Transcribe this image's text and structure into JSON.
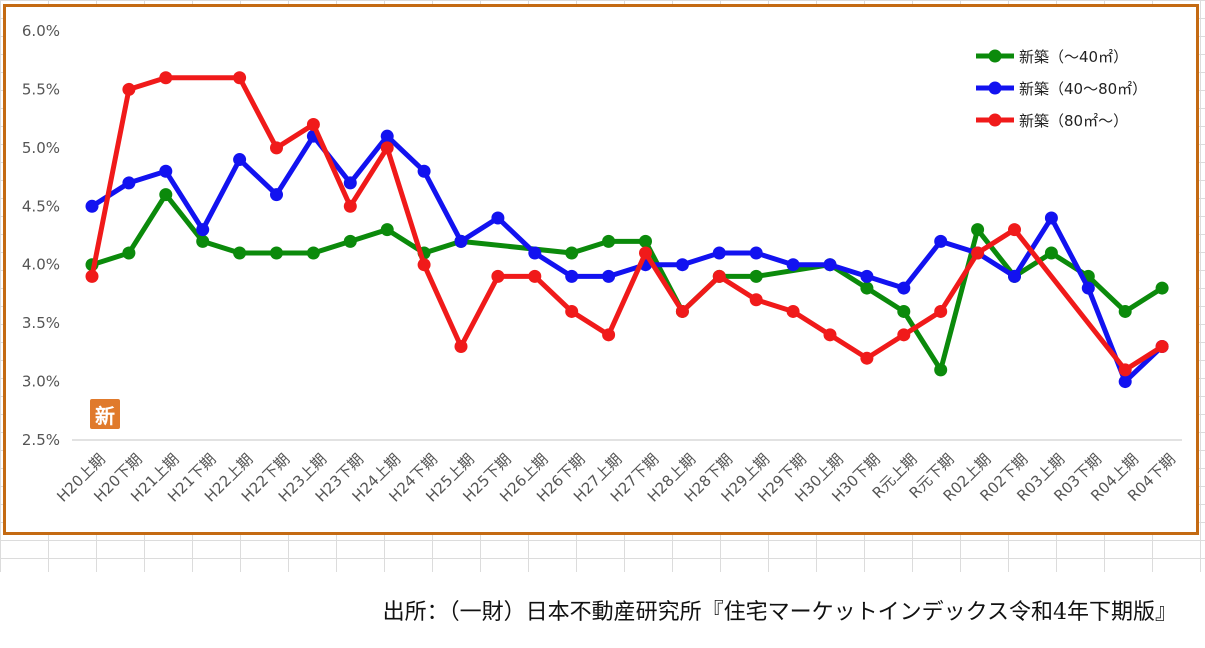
{
  "chart_data": {
    "type": "line",
    "categories": [
      "H20上期",
      "H20下期",
      "H21上期",
      "H21下期",
      "H22上期",
      "H22下期",
      "H23上期",
      "H23下期",
      "H24上期",
      "H24下期",
      "H25上期",
      "H25下期",
      "H26上期",
      "H26下期",
      "H27上期",
      "H27下期",
      "H28上期",
      "H28下期",
      "H29上期",
      "H29下期",
      "H30上期",
      "H30下期",
      "R元上期",
      "R元下期",
      "R02上期",
      "R02下期",
      "R03上期",
      "R03下期",
      "R04上期",
      "R04下期"
    ],
    "series": [
      {
        "name": "新築（～40㎡）",
        "color": "#0b8a0b",
        "values": [
          4.0,
          4.1,
          4.6,
          4.2,
          4.1,
          4.1,
          4.1,
          4.2,
          4.3,
          4.1,
          4.2,
          null,
          null,
          4.1,
          4.2,
          4.2,
          3.6,
          3.9,
          3.9,
          null,
          4.0,
          3.8,
          3.6,
          3.1,
          4.3,
          3.9,
          4.1,
          3.9,
          3.6,
          3.8
        ]
      },
      {
        "name": "新築（40～80㎡）",
        "color": "#1212f0",
        "values": [
          4.5,
          4.7,
          4.8,
          4.3,
          4.9,
          4.6,
          5.1,
          4.7,
          5.1,
          4.8,
          4.2,
          4.4,
          4.1,
          3.9,
          3.9,
          4.0,
          4.0,
          4.1,
          4.1,
          4.0,
          4.0,
          3.9,
          3.8,
          4.2,
          4.1,
          3.9,
          4.4,
          3.8,
          3.0,
          3.3
        ]
      },
      {
        "name": "新築（80㎡～）",
        "color": "#f01a1a",
        "values": [
          3.9,
          5.5,
          5.6,
          null,
          5.6,
          5.0,
          5.2,
          4.5,
          5.0,
          4.0,
          3.3,
          3.9,
          3.9,
          3.6,
          3.4,
          4.1,
          3.6,
          3.9,
          3.7,
          3.6,
          3.4,
          3.2,
          3.4,
          3.6,
          4.1,
          4.3,
          null,
          null,
          3.1,
          3.3
        ]
      }
    ],
    "y_ticks": [
      "2.5%",
      "3.0%",
      "3.5%",
      "4.0%",
      "4.5%",
      "5.0%",
      "5.5%",
      "6.0%"
    ],
    "ylim": [
      2.5,
      6.0
    ],
    "y_unit": "%",
    "grid": "horizontal-baseline-only",
    "legend_position": "top-right"
  },
  "badge_text": "新",
  "source_note": "出所：（一財）日本不動産研究所『住宅マーケットインデックス令和4年下期版』"
}
